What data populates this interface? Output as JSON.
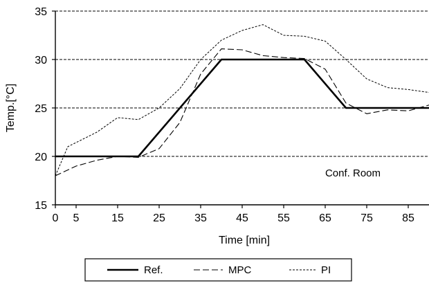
{
  "chart_data": {
    "type": "line",
    "xlabel": "Time [min]",
    "ylabel": "Temp.[°C]",
    "xlim": [
      0,
      90
    ],
    "ylim": [
      15,
      35
    ],
    "x_ticks": [
      0,
      5,
      15,
      25,
      35,
      45,
      55,
      65,
      75,
      85
    ],
    "y_ticks": [
      15,
      20,
      25,
      30,
      35
    ],
    "grid": "horizontal dashed at 20, 25, 30, 35",
    "annotation": "Conf. Room",
    "legend_position": "bottom",
    "series": [
      {
        "name": "Ref.",
        "style": "solid-thick",
        "x": [
          0,
          20,
          40,
          60,
          70,
          90
        ],
        "y": [
          20,
          20,
          30,
          30,
          25,
          25
        ]
      },
      {
        "name": "MPC",
        "style": "dashed",
        "x": [
          0,
          5,
          10,
          15,
          20,
          25,
          30,
          35,
          40,
          45,
          50,
          55,
          60,
          65,
          70,
          75,
          80,
          85,
          90
        ],
        "y": [
          18,
          19,
          19.6,
          20,
          19.9,
          20.8,
          23.5,
          28.5,
          31.1,
          31.0,
          30.4,
          30.2,
          30.1,
          29.0,
          25.5,
          24.4,
          24.8,
          24.7,
          25.3
        ]
      },
      {
        "name": "PI",
        "style": "dotted",
        "x": [
          0,
          3,
          10,
          15,
          20,
          25,
          30,
          35,
          40,
          45,
          50,
          55,
          60,
          65,
          70,
          75,
          80,
          85,
          90
        ],
        "y": [
          18,
          21,
          22.5,
          24.0,
          23.8,
          25.0,
          27.0,
          30.0,
          32.0,
          33.0,
          33.6,
          32.5,
          32.4,
          31.9,
          30.0,
          28.0,
          27.1,
          26.9,
          26.6
        ]
      }
    ]
  }
}
